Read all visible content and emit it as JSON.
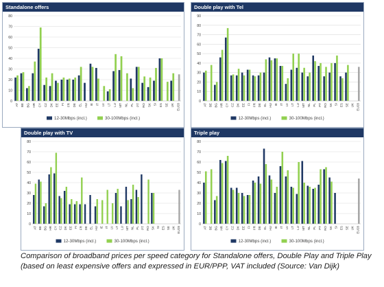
{
  "caption": "Comparison of broadband prices per speed category for Standalone offers, Double Play and Triple Play (based on least expensive offers and expressed in EUR/PPP, VAT included (Source: Van Dijk)",
  "colors": {
    "low": "#1f3864",
    "high": "#92d050",
    "eu": "#a6a6a6",
    "title_bg": "#1f3864"
  },
  "chart_data": [
    {
      "type": "bar",
      "title": "Standalone offers",
      "ylim": [
        0,
        80
      ],
      "yticks": [
        0,
        10,
        20,
        30,
        40,
        50,
        60,
        70,
        80
      ],
      "grid": true,
      "legend_position": "bottom",
      "categories": [
        "AT",
        "BE",
        "BG",
        "HR",
        "CY",
        "CZ",
        "DK",
        "EE",
        "FI",
        "FR",
        "DE",
        "EL",
        "HU",
        "IE",
        "IT",
        "LV",
        "LT",
        "LU",
        "MT",
        "NL",
        "PL",
        "PT",
        "RO",
        "SK",
        "SI",
        "ES",
        "SE",
        "UK",
        "EU28"
      ],
      "series": [
        {
          "name": "12-30Mbps (incl.)",
          "values": [
            22,
            26,
            12,
            26,
            49,
            15,
            14,
            19,
            20,
            20,
            20,
            24,
            17,
            35,
            31,
            null,
            9,
            28,
            29,
            null,
            21,
            32,
            17,
            13,
            19,
            40,
            null,
            19,
            null
          ]
        },
        {
          "name": "30-100Mbps (incl.)",
          "values": [
            24,
            27,
            14,
            37,
            69,
            22,
            26,
            17,
            22,
            21,
            22,
            32,
            null,
            32,
            21,
            14,
            11,
            44,
            42,
            26,
            12,
            32,
            23,
            22,
            31,
            40,
            18,
            26,
            25
          ]
        }
      ]
    },
    {
      "type": "bar",
      "title": "Double play with Tel",
      "ylim": [
        0,
        90
      ],
      "yticks": [
        0,
        10,
        20,
        30,
        40,
        50,
        60,
        70,
        80,
        90
      ],
      "grid": true,
      "legend_position": "bottom",
      "categories": [
        "AT",
        "BE",
        "BG",
        "HR",
        "CY",
        "CZ",
        "DK",
        "EE",
        "FI",
        "FR",
        "DE",
        "EL",
        "HU",
        "IE",
        "IT",
        "LV",
        "LT",
        "LU",
        "MT",
        "NL",
        "PL",
        "PT",
        "RO",
        "SK",
        "SI",
        "ES",
        "SE",
        "UK",
        "EU28"
      ],
      "series": [
        {
          "name": "12-30Mbps (incl.)",
          "values": [
            30,
            null,
            17,
            46,
            67,
            27,
            27,
            30,
            33,
            27,
            27,
            30,
            46,
            45,
            37,
            18,
            33,
            35,
            30,
            26,
            48,
            37,
            26,
            30,
            40,
            26,
            30,
            null,
            null
          ]
        },
        {
          "name": "30-100Mbps (incl.)",
          "values": [
            32,
            38,
            20,
            54,
            77,
            28,
            34,
            27,
            33,
            26,
            30,
            44,
            43,
            45,
            37,
            24,
            50,
            50,
            35,
            30,
            42,
            40,
            36,
            40,
            48,
            24,
            38,
            null,
            36
          ]
        }
      ]
    },
    {
      "type": "bar",
      "title": "Double play with TV",
      "ylim": [
        0,
        80
      ],
      "yticks": [
        0,
        10,
        20,
        30,
        40,
        50,
        60,
        70,
        80
      ],
      "grid": true,
      "legend_position": "bottom",
      "categories": [
        "AT",
        "BE",
        "BG",
        "HR",
        "CY",
        "CZ",
        "DK",
        "EE",
        "FI",
        "FR",
        "DE",
        "EL",
        "HU",
        "IE",
        "IT",
        "LV",
        "LT",
        "LU",
        "MT",
        "NL",
        "PL",
        "PT",
        "RO",
        "SK",
        "SI",
        "ES",
        "SE",
        "UK",
        "EU28"
      ],
      "series": [
        {
          "name": "12-30Mbps (incl.)",
          "values": [
            28,
            43,
            17,
            48,
            49,
            27,
            32,
            19,
            19,
            19,
            19,
            28,
            17,
            null,
            null,
            null,
            30,
            17,
            36,
            24,
            33,
            48,
            null,
            30,
            null,
            null,
            null,
            null,
            null
          ]
        },
        {
          "name": "30-100Mbps (incl.)",
          "values": [
            39,
            41,
            20,
            55,
            69,
            25,
            36,
            24,
            22,
            45,
            null,
            null,
            24,
            23,
            33,
            20,
            34,
            null,
            23,
            38,
            26,
            null,
            43,
            30,
            null,
            null,
            null,
            null,
            33
          ]
        }
      ]
    },
    {
      "type": "bar",
      "title": "Triple play",
      "ylim": [
        0,
        80
      ],
      "yticks": [
        0,
        10,
        20,
        30,
        40,
        50,
        60,
        70,
        80
      ],
      "grid": true,
      "legend_position": "bottom",
      "categories": [
        "AT",
        "BE",
        "BG",
        "HR",
        "CY",
        "CZ",
        "DK",
        "EE",
        "FI",
        "FR",
        "DE",
        "EL",
        "HU",
        "IE",
        "IT",
        "LV",
        "LT",
        "LU",
        "MT",
        "NL",
        "PL",
        "PT",
        "RO",
        "SK",
        "SI",
        "ES",
        "SE",
        "UK",
        "EU28"
      ],
      "series": [
        {
          "name": "12-30Mbps (incl.)",
          "values": [
            40,
            null,
            23,
            62,
            61,
            35,
            35,
            30,
            28,
            42,
            46,
            73,
            47,
            30,
            56,
            46,
            36,
            29,
            61,
            37,
            34,
            38,
            53,
            45,
            30,
            null,
            null,
            null,
            null
          ]
        },
        {
          "name": "30-100Mbps (incl.)",
          "values": [
            51,
            53,
            27,
            59,
            66,
            33,
            30,
            27,
            28,
            40,
            39,
            58,
            43,
            36,
            70,
            52,
            35,
            60,
            40,
            36,
            35,
            53,
            55,
            41,
            null,
            null,
            null,
            null,
            44
          ]
        }
      ]
    }
  ]
}
